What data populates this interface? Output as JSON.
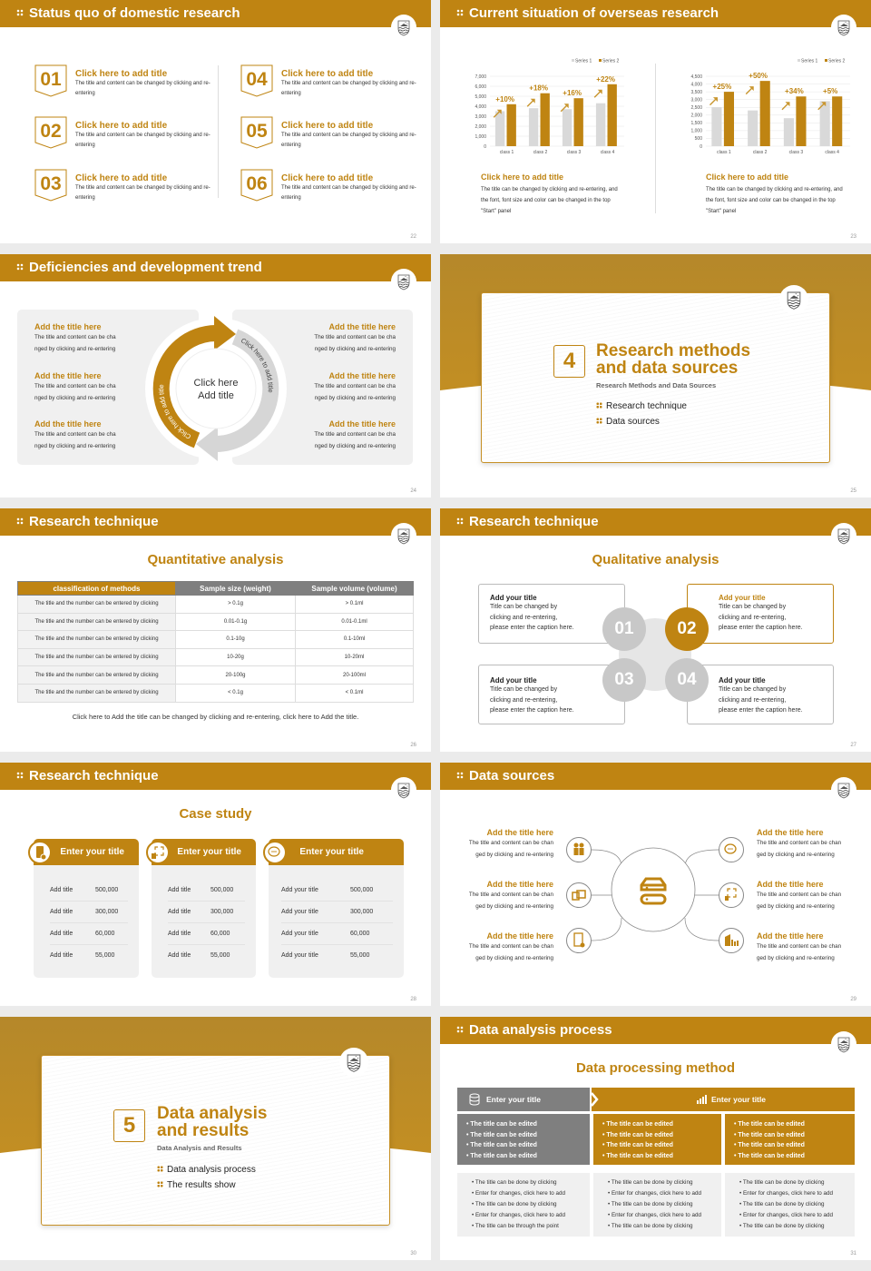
{
  "colors": {
    "accent": "#bf8412",
    "gray": "#7f7f7f",
    "light": "#f0f0f0"
  },
  "slides": [
    {
      "page": "22",
      "title": "Status quo of domestic research",
      "items": [
        {
          "num": "01",
          "title": "Click here to add title",
          "desc": "The title and content can be changed by clicking and re-entering"
        },
        {
          "num": "02",
          "title": "Click here to add title",
          "desc": "The title and content can be changed by clicking and re-entering"
        },
        {
          "num": "03",
          "title": "Click here to add title",
          "desc": "The title and content can be changed by clicking and re-entering"
        },
        {
          "num": "04",
          "title": "Click here to add title",
          "desc": "The title and content can be changed by clicking and re-entering"
        },
        {
          "num": "05",
          "title": "Click here to add title",
          "desc": "The title and content can be changed by clicking and re-entering"
        },
        {
          "num": "06",
          "title": "Click here to add title",
          "desc": "The title and content can be changed by clicking and re-entering"
        }
      ]
    },
    {
      "page": "23",
      "title": "Current situation of overseas research",
      "captions": [
        {
          "title": "Click here to add title",
          "desc": "The title can be changed by clicking and re-entering, and the font, font size and color can be changed in the top \"Start\" panel"
        },
        {
          "title": "Click here to add title",
          "desc": "The title can be changed by clicking and re-entering, and the font, font size and color can be changed in the top \"Start\" panel"
        }
      ]
    },
    {
      "page": "24",
      "title": "Deficiencies and development trend",
      "center": [
        "Click here",
        "Add title"
      ],
      "arc_left": "Click here to add title",
      "arc_right": "Click here to add title",
      "items": [
        {
          "title": "Add the title here",
          "desc": [
            "The title and content can be cha",
            "nged by clicking and re-entering"
          ]
        },
        {
          "title": "Add the title here",
          "desc": [
            "The title and content can be cha",
            "nged by clicking and re-entering"
          ]
        },
        {
          "title": "Add the title here",
          "desc": [
            "The title and content can be cha",
            "nged by clicking and re-entering"
          ]
        },
        {
          "title": "Add the title here",
          "desc": [
            "The title and content can be cha",
            "nged by clicking and re-entering"
          ]
        },
        {
          "title": "Add the title here",
          "desc": [
            "The title and content can be cha",
            "nged by clicking and re-entering"
          ]
        },
        {
          "title": "Add the title here",
          "desc": [
            "The title and content can be cha",
            "nged by clicking and re-entering"
          ]
        }
      ]
    },
    {
      "page": "25",
      "num": "4",
      "title": [
        "Research methods",
        "and data sources"
      ],
      "subtitle": "Research Methods and Data Sources",
      "bullets": [
        "Research technique",
        "Data sources"
      ]
    },
    {
      "page": "26",
      "title": "Research technique",
      "subtitle": "Quantitative analysis",
      "table": {
        "headers": [
          "classification of methods",
          "Sample size (weight)",
          "Sample volume (volume)"
        ],
        "rows": [
          [
            "The title and the number can be entered by clicking",
            "> 0.1g",
            "> 0.1ml"
          ],
          [
            "The title and the number can be entered by clicking",
            "0.01-0.1g",
            "0.01-0.1ml"
          ],
          [
            "The title and the number can be entered by clicking",
            "0.1-10g",
            "0.1-10ml"
          ],
          [
            "The title and the number can be entered by clicking",
            "10-20g",
            "10-20ml"
          ],
          [
            "The title and the number can be entered by clicking",
            "20-100g",
            "20-100ml"
          ],
          [
            "The title and the number can be entered by clicking",
            "< 0.1g",
            "< 0.1ml"
          ]
        ]
      },
      "footnote": "Click here to Add the title can be changed by clicking and re-entering, click here to Add the title."
    },
    {
      "page": "27",
      "title": "Research technique",
      "subtitle": "Qualitative analysis",
      "items": [
        {
          "num": "01",
          "title": "Add your title",
          "desc": [
            "Title can be changed by",
            "clicking and re-entering,",
            "please enter the caption here."
          ]
        },
        {
          "num": "02",
          "title": "Add your title",
          "desc": [
            "Title can be changed by",
            "clicking and re-entering,",
            "please enter the caption here."
          ],
          "active": true
        },
        {
          "num": "03",
          "title": "Add your title",
          "desc": [
            "Title can be changed by",
            "clicking and re-entering,",
            "please enter the caption here."
          ]
        },
        {
          "num": "04",
          "title": "Add your title",
          "desc": [
            "Title can be changed by",
            "clicking and re-entering,",
            "please enter the caption here."
          ]
        }
      ]
    },
    {
      "page": "28",
      "title": "Research technique",
      "subtitle": "Case study",
      "cards": [
        {
          "title": "Enter your title",
          "icon": "phone-user-icon",
          "rows": [
            [
              "Add title",
              "500,000"
            ],
            [
              "Add title",
              "300,000"
            ],
            [
              "Add title",
              "60,000"
            ],
            [
              "Add title",
              "55,000"
            ]
          ]
        },
        {
          "title": "Enter your title",
          "icon": "scan-icon",
          "rows": [
            [
              "Add title",
              "500,000"
            ],
            [
              "Add title",
              "300,000"
            ],
            [
              "Add title",
              "60,000"
            ],
            [
              "Add title",
              "55,000"
            ]
          ]
        },
        {
          "title": "Enter your title",
          "icon": "chat-icon",
          "rows": [
            [
              "Add your title",
              "500,000"
            ],
            [
              "Add your title",
              "300,000"
            ],
            [
              "Add your title",
              "60,000"
            ],
            [
              "Add your title",
              "55,000"
            ]
          ]
        }
      ]
    },
    {
      "page": "29",
      "title": "Data sources",
      "items": [
        {
          "title": "Add the title here",
          "desc": [
            "The title and content can be chan",
            "ged by clicking and re-entering"
          ],
          "icon": "people-icon"
        },
        {
          "title": "Add the title here",
          "desc": [
            "The title and content can be chan",
            "ged by clicking and re-entering"
          ],
          "icon": "boxes-icon"
        },
        {
          "title": "Add the title here",
          "desc": [
            "The title and content can be chan",
            "ged by clicking and re-entering"
          ],
          "icon": "profile-card-icon"
        },
        {
          "title": "Add the title here",
          "desc": [
            "The title and content can be chan",
            "ged by clicking and re-entering"
          ],
          "icon": "chat-icon"
        },
        {
          "title": "Add the title here",
          "desc": [
            "The title and content can be chan",
            "ged by clicking and re-entering"
          ],
          "icon": "scan-icon"
        },
        {
          "title": "Add the title here",
          "desc": [
            "The title and content can be chan",
            "ged by clicking and re-entering"
          ],
          "icon": "building-chart-icon"
        }
      ]
    },
    {
      "page": "30",
      "num": "5",
      "title": [
        "Data analysis",
        "and results"
      ],
      "subtitle": "Data Analysis and Results",
      "bullets": [
        "Data analysis process",
        "The results show"
      ]
    },
    {
      "page": "31",
      "title": "Data analysis process",
      "subtitle": "Data processing method",
      "head_left": "Enter your title",
      "head_right": "Enter your title",
      "mid": [
        "The title can be edited",
        "The title can be edited",
        "The title can be edited",
        "The title can be edited"
      ],
      "bottom": [
        [
          "The title can be done by clicking",
          "Enter for changes, click here to add",
          "The title can be done by clicking",
          "Enter for changes, click here to add",
          "The title can be through the point"
        ],
        [
          "The title can be done by clicking",
          "Enter for changes, click here to add",
          "The title can be done by clicking",
          "Enter for changes, click here to add",
          "The title can be done by clicking"
        ],
        [
          "The title can be done by clicking",
          "Enter for changes, click here to add",
          "The title can be done by clicking",
          "Enter for changes, click here to add",
          "The title can be done by clicking"
        ]
      ]
    }
  ],
  "chart_data": [
    {
      "type": "bar",
      "categories": [
        "class 1",
        "class 2",
        "class 3",
        "class 4"
      ],
      "series": [
        {
          "name": "Series 1",
          "values": [
            3500,
            3800,
            3700,
            4300
          ],
          "color": "#d9d9d9"
        },
        {
          "name": "Series 2",
          "values": [
            4200,
            5300,
            4800,
            6200
          ],
          "color": "#bf8412"
        }
      ],
      "annotations": [
        "+10%",
        "+18%",
        "+16%",
        "+22%"
      ],
      "ylim": [
        0,
        7000
      ],
      "yticks": [
        "0",
        "1,000",
        "2,000",
        "3,000",
        "4,000",
        "5,000",
        "6,000",
        "7,000"
      ],
      "grid": true,
      "legend": "top-right"
    },
    {
      "type": "bar",
      "categories": [
        "class 1",
        "class 2",
        "class 3",
        "class 4"
      ],
      "series": [
        {
          "name": "Series 1",
          "values": [
            2500,
            2300,
            1800,
            2900
          ],
          "color": "#d9d9d9"
        },
        {
          "name": "Series 2",
          "values": [
            3500,
            4200,
            3200,
            3200
          ],
          "color": "#bf8412"
        }
      ],
      "annotations": [
        "+25%",
        "+50%",
        "+34%",
        "+5%"
      ],
      "ylim": [
        0,
        4500
      ],
      "yticks": [
        "0",
        "500",
        "1,000",
        "1,500",
        "2,000",
        "2,500",
        "3,000",
        "3,500",
        "4,000",
        "4,500"
      ],
      "grid": true,
      "legend": "top-right"
    }
  ]
}
